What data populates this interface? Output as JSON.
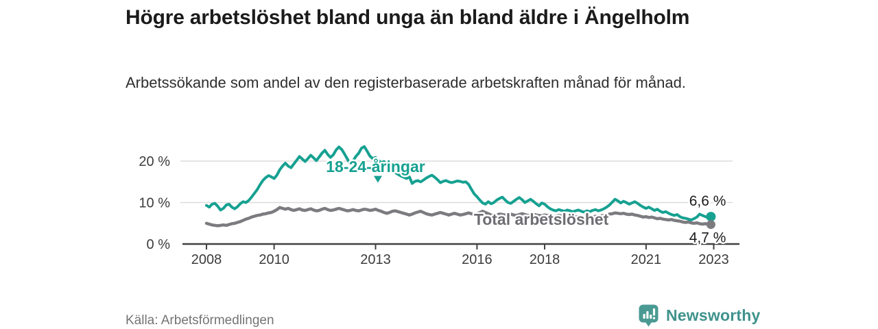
{
  "header": {
    "title": "Högre arbetslöshet bland unga än bland äldre i Ängelholm",
    "subtitle": "Arbetssökande som andel av den registerbaserade arbetskraften månad för månad."
  },
  "chart_data": {
    "type": "line",
    "title": "Högre arbetslöshet bland unga än bland äldre i Ängelholm",
    "subtitle": "Arbetssökande som andel av den registerbaserade arbetskraften månad för månad.",
    "x_start": 2008,
    "x_step_months": 1,
    "xlabel": "",
    "ylabel": "",
    "ylim": [
      0,
      26.6
    ],
    "grid": "horizontal",
    "y_ticks": [
      {
        "value": 0,
        "label": "0 %"
      },
      {
        "value": 10,
        "label": "10 %"
      },
      {
        "value": 20,
        "label": "20 %"
      }
    ],
    "x_ticks": [
      {
        "year": 2008,
        "label": "2008"
      },
      {
        "year": 2010,
        "label": "2010"
      },
      {
        "year": 2013,
        "label": "2013"
      },
      {
        "year": 2016,
        "label": "2016"
      },
      {
        "year": 2018,
        "label": "2018"
      },
      {
        "year": 2021,
        "label": "2021"
      },
      {
        "year": 2023,
        "label": "2023"
      }
    ],
    "series": [
      {
        "name": "18-24-åringar",
        "color": "#16a191",
        "line_width": 4,
        "end_label": "6,6 %",
        "end_dot_radius": 7,
        "values": [
          9.3,
          8.9,
          9.6,
          9.8,
          9.1,
          8.2,
          8.6,
          9.4,
          9.6,
          8.9,
          8.5,
          9.0,
          9.7,
          10.2,
          10.0,
          10.5,
          11.3,
          12.2,
          13.1,
          14.3,
          15.3,
          16.0,
          16.5,
          16.2,
          15.8,
          16.6,
          17.9,
          18.8,
          19.5,
          18.8,
          18.4,
          19.3,
          20.2,
          21.1,
          20.5,
          19.9,
          20.6,
          21.4,
          20.8,
          20.1,
          21.0,
          21.9,
          22.6,
          21.6,
          20.9,
          21.5,
          22.7,
          23.4,
          22.8,
          21.7,
          20.5,
          19.3,
          20.0,
          21.1,
          21.9,
          23.1,
          23.5,
          22.4,
          21.2,
          20.6,
          20.9,
          20.2,
          19.6,
          19.9,
          19.2,
          18.6,
          17.9,
          17.2,
          16.8,
          16.4,
          16.1,
          15.8,
          16.2,
          14.6,
          15.1,
          15.3,
          15.0,
          15.4,
          15.9,
          16.3,
          16.6,
          16.1,
          15.5,
          14.8,
          15.1,
          15.3,
          15.0,
          14.8,
          15.0,
          15.2,
          15.1,
          14.9,
          15.0,
          14.4,
          13.2,
          12.1,
          11.4,
          10.6,
          9.9,
          9.6,
          10.2,
          9.7,
          10.0,
          10.6,
          11.0,
          11.3,
          10.6,
          10.0,
          9.8,
          10.3,
          10.8,
          11.2,
          10.7,
          10.0,
          10.4,
          10.8,
          10.3,
          9.7,
          9.2,
          9.9,
          9.6,
          9.0,
          8.5,
          8.2,
          8.0,
          8.3,
          8.1,
          7.9,
          8.2,
          8.0,
          7.8,
          8.0,
          8.2,
          7.9,
          7.7,
          8.0,
          7.8,
          8.1,
          8.3,
          8.0,
          8.2,
          8.5,
          8.9,
          9.4,
          10.1,
          10.8,
          10.4,
          9.9,
          10.3,
          10.0,
          9.6,
          9.9,
          10.2,
          9.8,
          9.3,
          8.9,
          8.6,
          8.9,
          8.5,
          8.1,
          8.4,
          7.9,
          7.6,
          7.8,
          7.4,
          7.1,
          6.9,
          7.1,
          6.6,
          6.3,
          6.2,
          6.0,
          5.8,
          6.1,
          6.5,
          7.2,
          6.9,
          6.6,
          6.4,
          6.6
        ]
      },
      {
        "name": "Total arbetslöshet",
        "color": "#7b7b80",
        "line_width": 4.5,
        "end_label": "4,7 %",
        "end_dot_radius": 6.5,
        "values": [
          5.0,
          4.8,
          4.6,
          4.5,
          4.4,
          4.5,
          4.6,
          4.5,
          4.7,
          4.9,
          5.0,
          5.2,
          5.4,
          5.7,
          6.0,
          6.2,
          6.5,
          6.7,
          6.9,
          7.0,
          7.2,
          7.3,
          7.5,
          7.6,
          7.9,
          8.3,
          8.8,
          8.6,
          8.4,
          8.6,
          8.3,
          8.1,
          8.3,
          8.5,
          8.2,
          8.1,
          8.3,
          8.5,
          8.2,
          8.0,
          8.1,
          8.4,
          8.6,
          8.3,
          8.1,
          8.2,
          8.4,
          8.6,
          8.4,
          8.2,
          8.0,
          8.1,
          8.3,
          8.1,
          8.0,
          8.2,
          8.4,
          8.3,
          8.1,
          8.2,
          8.4,
          8.1,
          7.9,
          7.6,
          7.4,
          7.6,
          7.9,
          8.0,
          7.8,
          7.6,
          7.4,
          7.2,
          7.0,
          7.2,
          7.5,
          7.7,
          7.9,
          7.6,
          7.3,
          7.1,
          7.0,
          7.2,
          7.4,
          7.6,
          7.4,
          7.2,
          7.0,
          7.2,
          7.4,
          7.2,
          7.0,
          7.1,
          7.3,
          7.5,
          7.3,
          7.1,
          7.3,
          7.6,
          7.9,
          7.6,
          7.3,
          7.0,
          6.8,
          7.0,
          7.2,
          7.1,
          7.0,
          7.1,
          7.2,
          7.0,
          6.9,
          7.1,
          7.3,
          7.1,
          6.9,
          7.0,
          7.2,
          7.0,
          6.9,
          6.8,
          7.0,
          6.9,
          6.7,
          6.6,
          6.7,
          6.9,
          6.8,
          6.6,
          6.5,
          6.6,
          6.7,
          6.6,
          6.5,
          6.4,
          6.3,
          6.5,
          6.6,
          6.5,
          6.7,
          6.6,
          6.8,
          6.9,
          7.0,
          7.2,
          7.3,
          7.5,
          7.4,
          7.3,
          7.4,
          7.2,
          7.1,
          7.2,
          7.0,
          6.9,
          6.7,
          6.5,
          6.6,
          6.4,
          6.5,
          6.3,
          6.1,
          6.2,
          6.0,
          5.9,
          5.8,
          5.9,
          5.7,
          5.6,
          5.5,
          5.3,
          5.2,
          5.3,
          5.1,
          5.0,
          5.1,
          4.9,
          4.8,
          4.9,
          4.8,
          4.7
        ]
      }
    ],
    "annotations": [
      {
        "text": "18-24-åringar",
        "x": 2013.0,
        "y": 18.7,
        "color": "#16a191",
        "marker": {
          "shape": "triangle-down",
          "x": 2013.07,
          "y": 15.6
        }
      },
      {
        "text": "Total arbetslöshet",
        "x": 2017.9,
        "y": 5.95,
        "color": "#6d6d72"
      }
    ],
    "legend_position": "inline-labels"
  },
  "footer": {
    "source": "Källa: Arbetsförmedlingen",
    "brand": "Newsworthy"
  },
  "colors": {
    "accent_teal": "#16a191",
    "line_gray": "#7b7b80",
    "brand_teal": "#3f928c",
    "axis": "#414141",
    "gridline": "#dcdcdc"
  }
}
